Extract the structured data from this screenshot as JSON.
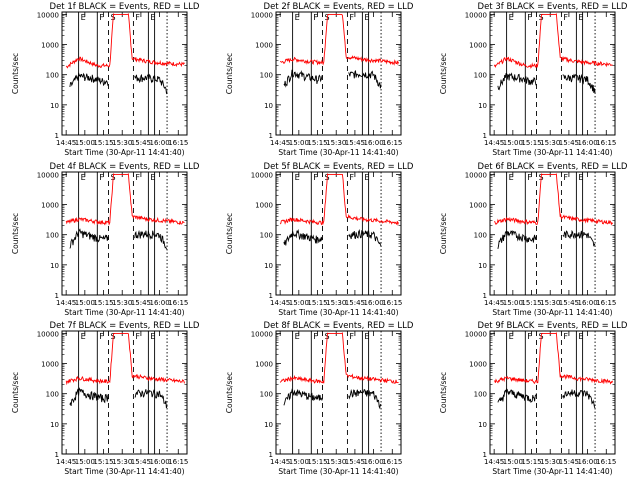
{
  "figure": {
    "panels": [
      {
        "title": "Det 1f BLACK = Events, RED = LLD",
        "ylabel": "Counts/sec",
        "xlabel": "Start Time (30-Apr-11 14:41:40)",
        "xticks": [
          "14:45",
          "15:00",
          "15:15",
          "15:30",
          "15:45",
          "16:00",
          "16:15"
        ],
        "markers": [
          "E",
          "F",
          "S",
          "F",
          "E"
        ],
        "profile": "low"
      },
      {
        "title": "Det 2f BLACK = Events, RED = LLD",
        "ylabel": "Counts/sec",
        "xlabel": "Start Time (30-Apr-11 14:41:40)",
        "xticks": [
          "14:45",
          "15:00",
          "15:15",
          "15:30",
          "15:45",
          "16:00",
          "16:15"
        ],
        "markers": [
          "E",
          "F",
          "S",
          "F",
          "E"
        ],
        "profile": "high"
      },
      {
        "title": "Det 3f BLACK = Events, RED = LLD",
        "ylabel": "Counts/sec",
        "xlabel": "Start Time (30-Apr-11 14:41:40)",
        "xticks": [
          "14:45",
          "15:00",
          "15:15",
          "15:30",
          "15:45",
          "16:00",
          "16:15"
        ],
        "markers": [
          "E",
          "F",
          "S",
          "F",
          "E"
        ],
        "profile": "low"
      },
      {
        "title": "Det 4f BLACK = Events, RED = LLD",
        "ylabel": "Counts/sec",
        "xlabel": "Start Time (30-Apr-11 14:41:40)",
        "xticks": [
          "14:45",
          "15:00",
          "15:15",
          "15:30",
          "15:45",
          "16:00",
          "16:15"
        ],
        "markers": [
          "E",
          "F",
          "S",
          "F",
          "E"
        ],
        "profile": "high"
      },
      {
        "title": "Det 5f BLACK = Events, RED = LLD",
        "ylabel": "Counts/sec",
        "xlabel": "Start Time (30-Apr-11 14:41:40)",
        "xticks": [
          "14:45",
          "15:00",
          "15:15",
          "15:30",
          "15:45",
          "16:00",
          "16:15"
        ],
        "markers": [
          "E",
          "F",
          "S",
          "F",
          "E"
        ],
        "profile": "high"
      },
      {
        "title": "Det 6f BLACK = Events, RED = LLD",
        "ylabel": "Counts/sec",
        "xlabel": "Start Time (30-Apr-11 14:41:40)",
        "xticks": [
          "14:45",
          "15:00",
          "15:15",
          "15:30",
          "15:45",
          "16:00",
          "16:15"
        ],
        "markers": [
          "E",
          "F",
          "S",
          "F",
          "E"
        ],
        "profile": "high"
      },
      {
        "title": "Det 7f BLACK = Events, RED = LLD",
        "ylabel": "Counts/sec",
        "xlabel": "Start Time (30-Apr-11 14:41:40)",
        "xticks": [
          "14:45",
          "15:00",
          "15:15",
          "15:30",
          "15:45",
          "16:00",
          "16:15"
        ],
        "markers": [
          "E",
          "F",
          "S",
          "F",
          "E"
        ],
        "profile": "high"
      },
      {
        "title": "Det 8f BLACK = Events, RED = LLD",
        "ylabel": "Counts/sec",
        "xlabel": "Start Time (30-Apr-11 14:41:40)",
        "xticks": [
          "14:45",
          "15:00",
          "15:15",
          "15:30",
          "15:45",
          "16:00",
          "16:15"
        ],
        "markers": [
          "E",
          "F",
          "S",
          "F",
          "E"
        ],
        "profile": "high"
      },
      {
        "title": "Det 9f BLACK = Events, RED = LLD",
        "ylabel": "Counts/sec",
        "xlabel": "Start Time (30-Apr-11 14:41:40)",
        "xticks": [
          "14:45",
          "15:00",
          "15:15",
          "15:30",
          "15:45",
          "16:00",
          "16:15"
        ],
        "markers": [
          "E",
          "F",
          "S",
          "F",
          "E"
        ],
        "profile": "high"
      }
    ]
  },
  "chart_data": {
    "type": "line",
    "layout": "3x3 grid of panels",
    "x_axis": {
      "type": "time",
      "ticks": [
        "14:45",
        "15:00",
        "15:15",
        "15:30",
        "15:45",
        "16:00",
        "16:15"
      ],
      "range": [
        "14:41:40",
        "16:22"
      ]
    },
    "y_axis": {
      "scale": "log",
      "range": [
        1,
        12000
      ],
      "ticks": [
        1,
        10,
        100,
        1000,
        10000
      ]
    },
    "series_colors": {
      "Events": "#000000",
      "LLD": "#ff0000"
    },
    "vertical_markers": [
      {
        "label": "E",
        "time": "14:55",
        "style": "solid"
      },
      {
        "label": "F",
        "time": "15:10",
        "style": "solid"
      },
      {
        "label": "S",
        "time": "15:19",
        "style": "dashed"
      },
      {
        "label": "S",
        "time": "15:39",
        "style": "dashed"
      },
      {
        "label": "F",
        "time": "15:51",
        "style": "solid"
      },
      {
        "label": "E",
        "time": "15:56",
        "style": "solid"
      },
      {
        "label": "",
        "time": "16:06",
        "style": "dotted"
      }
    ],
    "saa_window": [
      "15:21",
      "15:37"
    ],
    "profiles": {
      "high": {
        "events": [
          {
            "t": "14:48",
            "v": 45
          },
          {
            "t": "14:55",
            "v": 120
          },
          {
            "t": "15:05",
            "v": 90
          },
          {
            "t": "15:15",
            "v": 70
          },
          {
            "t": "15:19",
            "v": 80
          },
          {
            "t": "15:40",
            "v": 100
          },
          {
            "t": "15:50",
            "v": 110
          },
          {
            "t": "16:00",
            "v": 100
          },
          {
            "t": "16:06",
            "v": 40
          }
        ],
        "lld": [
          {
            "t": "14:45",
            "v": 250
          },
          {
            "t": "14:55",
            "v": 330
          },
          {
            "t": "15:10",
            "v": 270
          },
          {
            "t": "15:20",
            "v": 250
          },
          {
            "t": "15:23",
            "v": 10000
          },
          {
            "t": "15:35",
            "v": 10000
          },
          {
            "t": "15:38",
            "v": 400
          },
          {
            "t": "15:50",
            "v": 330
          },
          {
            "t": "16:00",
            "v": 300
          },
          {
            "t": "16:20",
            "v": 250
          }
        ]
      },
      "low": {
        "events": [
          {
            "t": "14:48",
            "v": 40
          },
          {
            "t": "14:55",
            "v": 90
          },
          {
            "t": "15:05",
            "v": 80
          },
          {
            "t": "15:15",
            "v": 60
          },
          {
            "t": "15:40",
            "v": 80
          },
          {
            "t": "15:50",
            "v": 80
          },
          {
            "t": "16:00",
            "v": 70
          },
          {
            "t": "16:06",
            "v": 30
          }
        ],
        "lld": [
          {
            "t": "14:45",
            "v": 180
          },
          {
            "t": "14:55",
            "v": 350
          },
          {
            "t": "15:10",
            "v": 200
          },
          {
            "t": "15:20",
            "v": 200
          },
          {
            "t": "15:23",
            "v": 10000
          },
          {
            "t": "15:35",
            "v": 10000
          },
          {
            "t": "15:38",
            "v": 350
          },
          {
            "t": "15:50",
            "v": 280
          },
          {
            "t": "16:00",
            "v": 250
          },
          {
            "t": "16:20",
            "v": 220
          }
        ]
      }
    }
  }
}
